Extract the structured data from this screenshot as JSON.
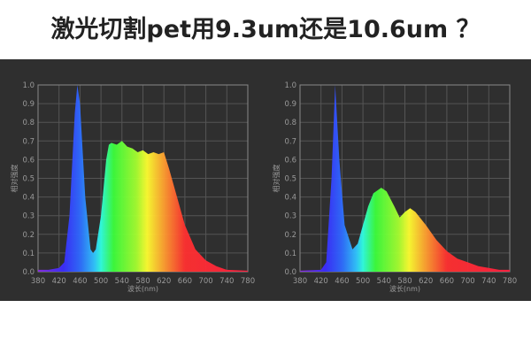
{
  "title": "激光切割pet用9.3um还是10.6um ？",
  "chart_data": [
    {
      "type": "area",
      "xlabel": "波长(nm)",
      "ylabel": "相对强度",
      "xlim": [
        380,
        780
      ],
      "ylim": [
        0,
        1.0
      ],
      "xticks": [
        "380",
        "420",
        "460",
        "500",
        "540",
        "580",
        "620",
        "660",
        "700",
        "740",
        "780"
      ],
      "yticks": [
        "0.0",
        "0.1",
        "0.2",
        "0.3",
        "0.4",
        "0.5",
        "0.6",
        "0.7",
        "0.8",
        "0.9",
        "1.0"
      ],
      "grid": true,
      "fill": "visible-spectrum gradient",
      "x": [
        380,
        400,
        420,
        430,
        440,
        450,
        455,
        460,
        470,
        480,
        485,
        490,
        500,
        510,
        515,
        520,
        530,
        540,
        550,
        560,
        570,
        580,
        590,
        600,
        610,
        620,
        630,
        640,
        650,
        660,
        680,
        700,
        720,
        740,
        780
      ],
      "y": [
        0.01,
        0.01,
        0.02,
        0.05,
        0.3,
        0.85,
        1.0,
        0.9,
        0.4,
        0.12,
        0.1,
        0.12,
        0.3,
        0.6,
        0.68,
        0.69,
        0.68,
        0.7,
        0.67,
        0.66,
        0.64,
        0.65,
        0.63,
        0.64,
        0.63,
        0.64,
        0.55,
        0.45,
        0.35,
        0.25,
        0.12,
        0.06,
        0.03,
        0.01,
        0.005
      ]
    },
    {
      "type": "area",
      "xlabel": "波长(nm)",
      "ylabel": "相对强度",
      "xlim": [
        380,
        780
      ],
      "ylim": [
        0,
        1.0
      ],
      "xticks": [
        "380",
        "420",
        "460",
        "500",
        "540",
        "580",
        "620",
        "660",
        "700",
        "740",
        "780"
      ],
      "yticks": [
        "0.0",
        "0.1",
        "0.2",
        "0.3",
        "0.4",
        "0.5",
        "0.6",
        "0.7",
        "0.8",
        "0.9",
        "1.0"
      ],
      "grid": true,
      "fill": "visible-spectrum gradient",
      "x": [
        380,
        420,
        430,
        440,
        447,
        455,
        465,
        480,
        490,
        500,
        510,
        520,
        535,
        545,
        560,
        570,
        580,
        590,
        600,
        620,
        640,
        660,
        680,
        700,
        720,
        740,
        760,
        780
      ],
      "y": [
        0.005,
        0.01,
        0.05,
        0.5,
        1.0,
        0.6,
        0.25,
        0.12,
        0.15,
        0.25,
        0.35,
        0.42,
        0.45,
        0.43,
        0.35,
        0.29,
        0.32,
        0.34,
        0.32,
        0.25,
        0.17,
        0.11,
        0.07,
        0.05,
        0.03,
        0.02,
        0.01,
        0.01
      ]
    }
  ]
}
